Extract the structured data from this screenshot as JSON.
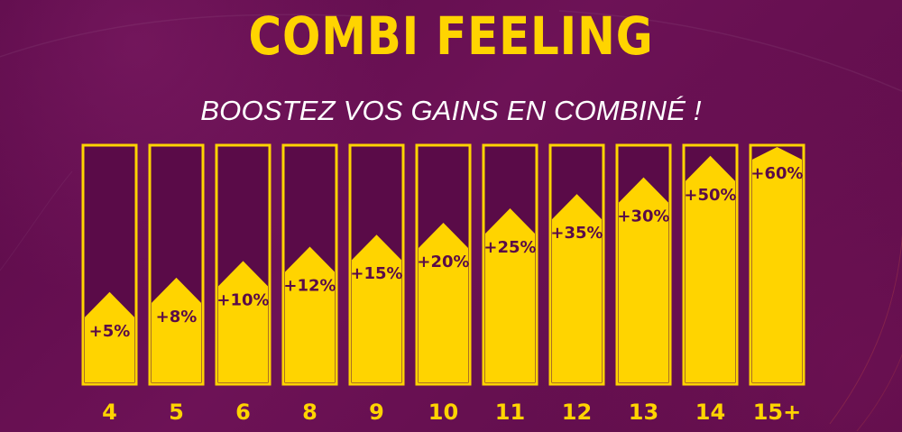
{
  "title": "COMBI FEELING",
  "subtitle": "BOOSTEZ VOS GAINS EN COMBINÉ !",
  "colors": {
    "background": "#661050",
    "accent": "#ffd400",
    "bar_empty": "#5a0b48",
    "text_light": "#ffffff"
  },
  "chart_data": {
    "type": "bar",
    "categories": [
      "4",
      "5",
      "6",
      "8",
      "9",
      "10",
      "11",
      "12",
      "13",
      "14",
      "15+"
    ],
    "labels": [
      "+5%",
      "+8%",
      "+10%",
      "+12%",
      "+15%",
      "+20%",
      "+25%",
      "+35%",
      "+30%",
      "+50%",
      "+60%"
    ],
    "values": [
      0.28,
      0.34,
      0.41,
      0.47,
      0.52,
      0.57,
      0.63,
      0.69,
      0.76,
      0.85,
      0.94
    ],
    "ylim": [
      0,
      1
    ],
    "grid": false,
    "legend": "none"
  }
}
